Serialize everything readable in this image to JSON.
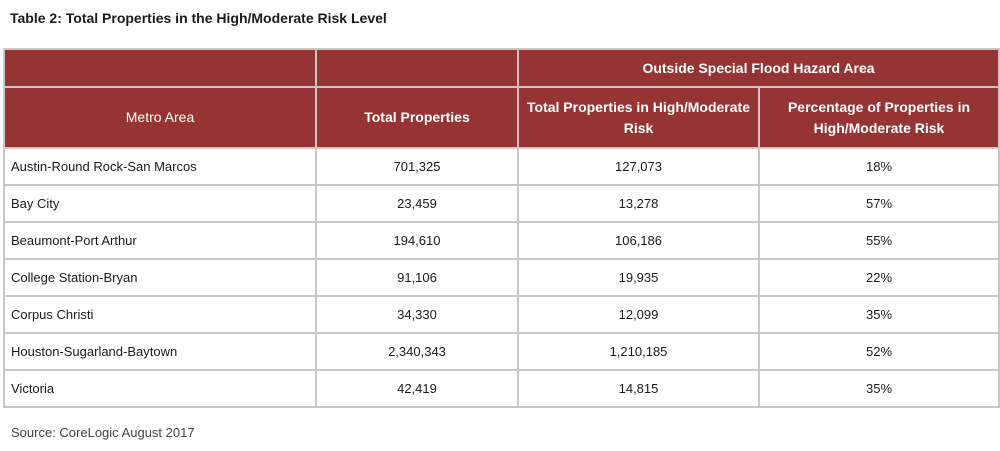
{
  "title": "Table 2: Total Properties in the High/Moderate Risk Level",
  "colors": {
    "header_background": "#963434",
    "header_text": "#ffffff",
    "grid_lines": "#c8c8c8"
  },
  "table": {
    "group_header": "Outside Special Flood Hazard Area",
    "columns": [
      "Metro Area",
      "Total Properties",
      "Total Properties in High/Moderate Risk",
      "Percentage of Properties in High/Moderate Risk"
    ],
    "rows": [
      {
        "metro": "Austin-Round Rock-San Marcos",
        "total": "701,325",
        "risk": "127,073",
        "pct": "18%"
      },
      {
        "metro": "Bay City",
        "total": "23,459",
        "risk": "13,278",
        "pct": "57%"
      },
      {
        "metro": "Beaumont-Port Arthur",
        "total": "194,610",
        "risk": "106,186",
        "pct": "55%"
      },
      {
        "metro": "College Station-Bryan",
        "total": "91,106",
        "risk": "19,935",
        "pct": "22%"
      },
      {
        "metro": "Corpus Christi",
        "total": "34,330",
        "risk": "12,099",
        "pct": "35%"
      },
      {
        "metro": "Houston-Sugarland-Baytown",
        "total": "2,340,343",
        "risk": "1,210,185",
        "pct": "52%"
      },
      {
        "metro": "Victoria",
        "total": "42,419",
        "risk": "14,815",
        "pct": "35%"
      }
    ]
  },
  "source": "Source: CoreLogic August 2017"
}
